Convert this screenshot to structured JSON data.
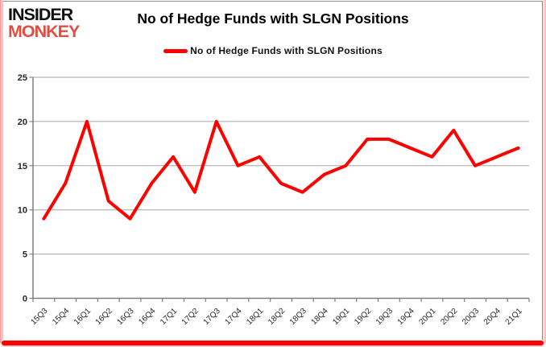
{
  "brand": {
    "line1": "INSIDER",
    "line2": "MONKEY",
    "monkey_color": "#DC5044"
  },
  "header": {
    "title": "No of Hedge Funds with SLGN Positions"
  },
  "legend": {
    "label": "No of Hedge Funds with SLGN Positions",
    "swatch_color": "#FF0000"
  },
  "chart_data": {
    "type": "line",
    "title": "No of Hedge Funds with SLGN Positions",
    "xlabel": "",
    "ylabel": "",
    "categories": [
      "15Q3",
      "15Q4",
      "16Q1",
      "16Q2",
      "16Q3",
      "16Q4",
      "17Q1",
      "17Q2",
      "17Q3",
      "17Q4",
      "18Q1",
      "18Q2",
      "18Q3",
      "18Q4",
      "19Q1",
      "19Q2",
      "19Q3",
      "19Q4",
      "20Q1",
      "20Q2",
      "20Q3",
      "20Q4",
      "21Q1"
    ],
    "series": [
      {
        "name": "No of Hedge Funds with SLGN Positions",
        "color": "#FF0000",
        "values": [
          9,
          13,
          20,
          11,
          9,
          13,
          16,
          12,
          20,
          15,
          16,
          13,
          12,
          14,
          15,
          18,
          18,
          17,
          16,
          19,
          15,
          16,
          17
        ]
      }
    ],
    "ylim": [
      0,
      25
    ],
    "yticks": [
      0,
      5,
      10,
      15,
      20,
      25
    ],
    "grid": true,
    "legend_position": "top"
  },
  "colors": {
    "line": "#FF0000",
    "grid": "#A6A6A6",
    "axis": "#7F7F7F",
    "tick_text": "#262626",
    "bottom_bar": "#FE0000",
    "edge_glow": "#FF9C9C"
  }
}
